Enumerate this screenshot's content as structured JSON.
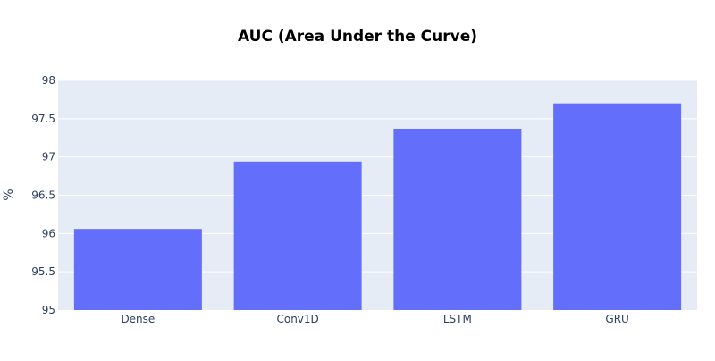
{
  "chart_data": {
    "type": "bar",
    "title": "AUC (Area Under the Curve)",
    "xlabel": "",
    "ylabel": "%",
    "categories": [
      "Dense",
      "Conv1D",
      "LSTM",
      "GRU"
    ],
    "values": [
      96.06,
      96.94,
      97.37,
      97.7
    ],
    "ylim": [
      95,
      98
    ],
    "yticks": [
      95,
      95.5,
      96,
      96.5,
      97,
      97.5,
      98
    ],
    "ytick_labels": [
      "95",
      "95.5",
      "96",
      "96.5",
      "97",
      "97.5",
      "98"
    ],
    "grid": true,
    "legend": "none",
    "colors": {
      "bar": "#636efa",
      "plot_background": "#e5ecf6",
      "grid": "#ffffff",
      "text": "#2a3f5f"
    }
  }
}
